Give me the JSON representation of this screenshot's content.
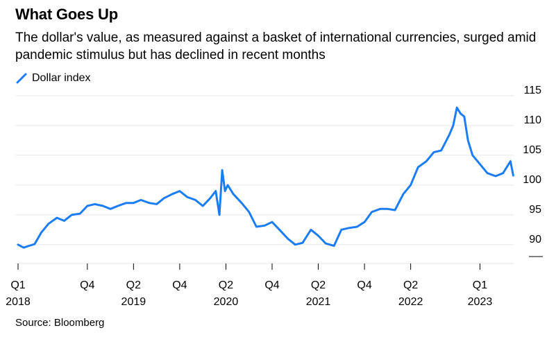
{
  "title": "What Goes Up",
  "subtitle": "The dollar's value, as measured against a basket of international currencies, surged amid pandemic stimulus but has declined in recent months",
  "legend": {
    "label": "Dollar index",
    "icon": "line-swatch-icon"
  },
  "source": "Source: Bloomberg",
  "colors": {
    "line": "#1a7df5",
    "grid": "#e6e6e6",
    "axis": "#000000"
  },
  "chart_data": {
    "type": "line",
    "series": [
      {
        "name": "Dollar index",
        "x": [
          2018.0,
          2018.06,
          2018.12,
          2018.18,
          2018.25,
          2018.33,
          2018.42,
          2018.5,
          2018.58,
          2018.67,
          2018.75,
          2018.83,
          2018.92,
          2019.0,
          2019.08,
          2019.17,
          2019.25,
          2019.33,
          2019.42,
          2019.5,
          2019.58,
          2019.67,
          2019.75,
          2019.83,
          2019.92,
          2020.0,
          2020.08,
          2020.14,
          2020.18,
          2020.21,
          2020.24,
          2020.27,
          2020.33,
          2020.42,
          2020.5,
          2020.58,
          2020.67,
          2020.75,
          2020.83,
          2020.92,
          2021.0,
          2021.08,
          2021.17,
          2021.25,
          2021.33,
          2021.42,
          2021.5,
          2021.58,
          2021.67,
          2021.75,
          2021.83,
          2021.92,
          2022.0,
          2022.08,
          2022.17,
          2022.25,
          2022.33,
          2022.42,
          2022.5,
          2022.58,
          2022.67,
          2022.71,
          2022.75,
          2022.79,
          2022.83,
          2022.87,
          2022.92,
          2023.0,
          2023.08,
          2023.17,
          2023.25,
          2023.33,
          2023.36
        ],
        "y": [
          90.0,
          89.5,
          89.8,
          90.1,
          92.0,
          93.5,
          94.5,
          94.0,
          95.0,
          95.2,
          96.5,
          96.8,
          96.5,
          96.0,
          96.5,
          97.0,
          97.0,
          97.5,
          97.0,
          96.8,
          97.8,
          98.5,
          99.0,
          98.0,
          97.5,
          96.5,
          97.8,
          99.0,
          95.0,
          102.5,
          99.0,
          100.0,
          98.5,
          97.0,
          95.5,
          93.0,
          93.2,
          93.8,
          92.5,
          91.0,
          90.0,
          90.3,
          92.5,
          91.5,
          90.2,
          89.8,
          92.5,
          92.8,
          93.0,
          93.8,
          95.5,
          96.0,
          96.0,
          95.8,
          98.5,
          100.0,
          103.0,
          104.0,
          105.5,
          105.8,
          108.5,
          110.0,
          113.0,
          112.0,
          111.5,
          107.5,
          105.0,
          103.5,
          102.0,
          101.5,
          102.0,
          104.0,
          101.6
        ]
      }
    ],
    "x_ticks": [
      {
        "x": 2018.0,
        "label": "Q1",
        "year": "2018"
      },
      {
        "x": 2018.75,
        "label": "Q4",
        "year": ""
      },
      {
        "x": 2019.25,
        "label": "Q2",
        "year": "2019"
      },
      {
        "x": 2019.75,
        "label": "Q4",
        "year": ""
      },
      {
        "x": 2020.25,
        "label": "Q2",
        "year": "2020"
      },
      {
        "x": 2020.75,
        "label": "Q4",
        "year": ""
      },
      {
        "x": 2021.25,
        "label": "Q2",
        "year": "2021"
      },
      {
        "x": 2021.75,
        "label": "Q4",
        "year": ""
      },
      {
        "x": 2022.25,
        "label": "Q2",
        "year": "2022"
      },
      {
        "x": 2023.0,
        "label": "Q1",
        "year": "2023"
      }
    ],
    "y_ticks": [
      90,
      95,
      100,
      105,
      110,
      115
    ],
    "xlim": [
      2017.97,
      2023.5
    ],
    "ylim": [
      88,
      115
    ],
    "grid": true,
    "y_axis_side": "right"
  }
}
